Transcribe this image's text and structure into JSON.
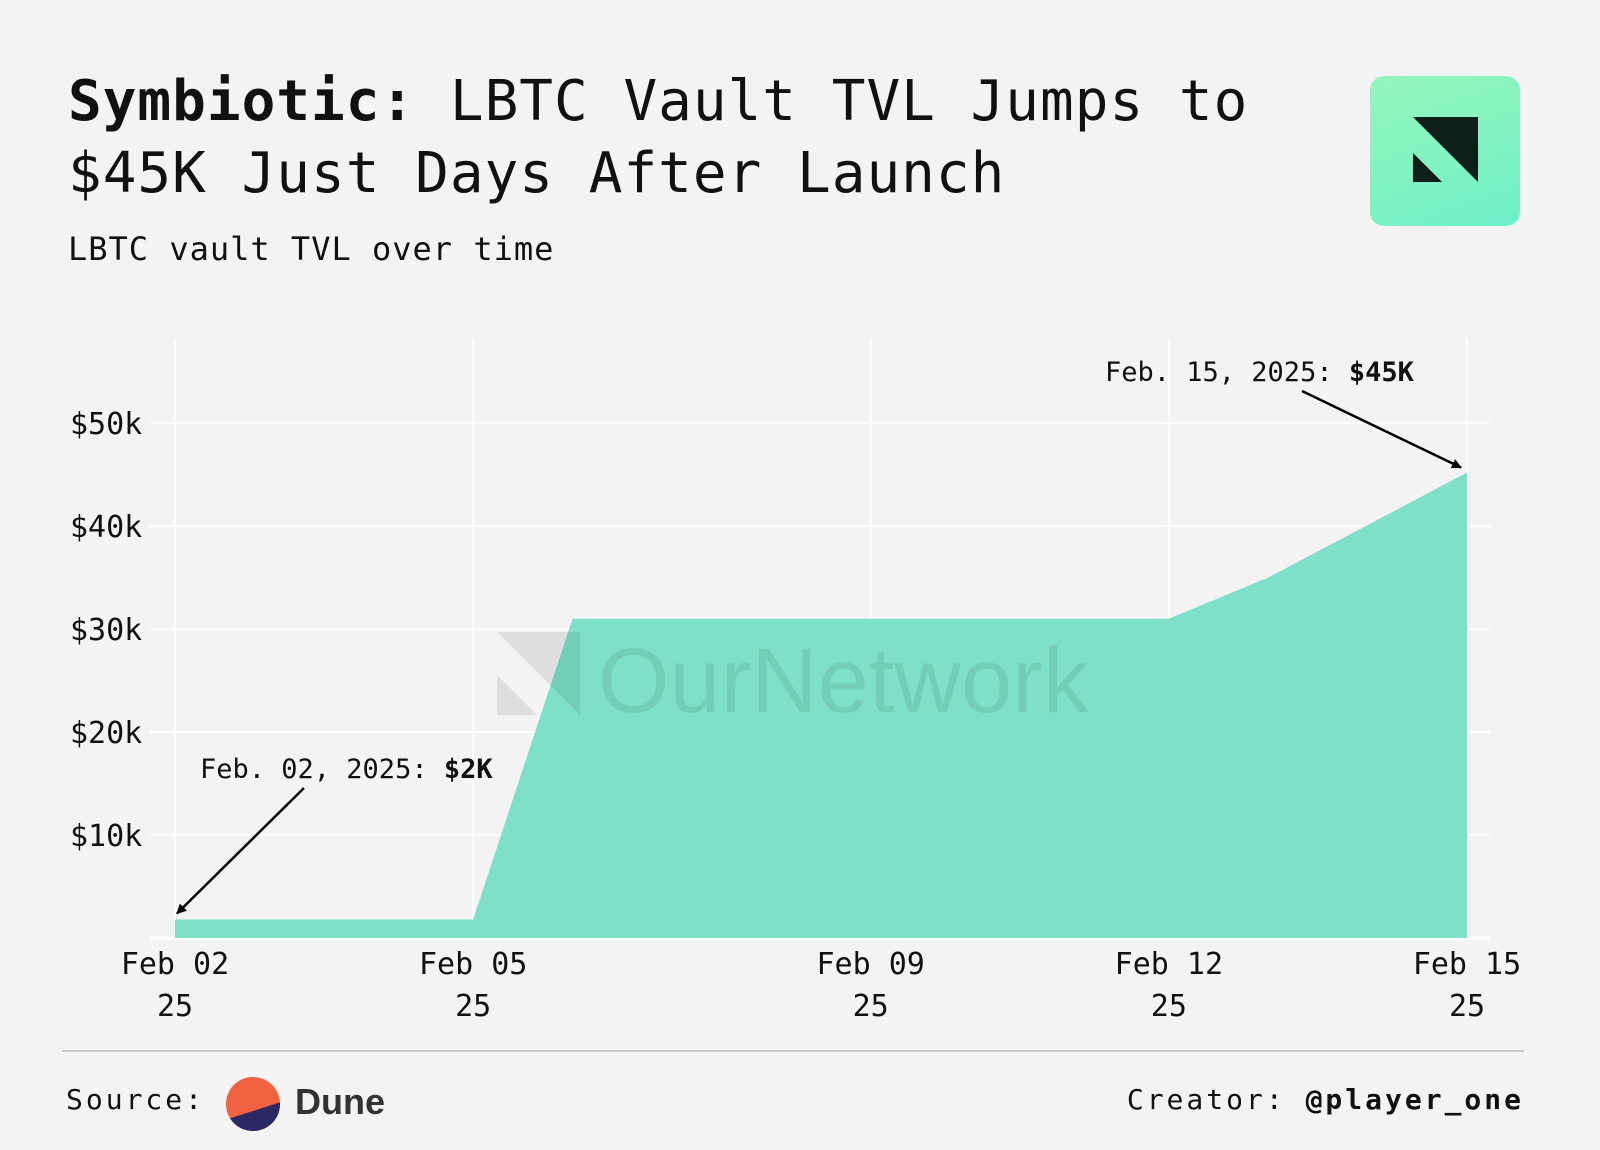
{
  "header": {
    "title_bold": "Symbiotic:",
    "title_rest": " LBTC Vault TVL Jumps to $45K Just Days After Launch",
    "subtitle": "LBTC vault TVL over time"
  },
  "watermark": "OurNetwork",
  "footer": {
    "source_label": "Source:",
    "source_name": "Dune",
    "creator_label": "Creator:",
    "creator_handle": "@player_one"
  },
  "colors": {
    "area": "#7be0c6",
    "grid": "#ffffff",
    "dune_orange": "#f06240",
    "dune_navy": "#2c2864"
  },
  "chart_data": {
    "type": "area",
    "title": "",
    "xlabel": "",
    "ylabel": "",
    "x": [
      "2025-02-02",
      "2025-02-05",
      "2025-02-06",
      "2025-02-12",
      "2025-02-13",
      "2025-02-15"
    ],
    "values": [
      1800,
      1800,
      31000,
      31000,
      35000,
      45200
    ],
    "ylim": [
      0,
      57000
    ],
    "yticks": [
      10000,
      20000,
      30000,
      40000,
      50000
    ],
    "ytick_labels": [
      "$10k",
      "$20k",
      "$30k",
      "$40k",
      "$50k"
    ],
    "xticks": [
      "2025-02-02",
      "2025-02-05",
      "2025-02-09",
      "2025-02-12",
      "2025-02-15"
    ],
    "xtick_labels": [
      [
        "Feb 02",
        "25"
      ],
      [
        "Feb 05",
        "25"
      ],
      [
        "Feb 09",
        "25"
      ],
      [
        "Feb 12",
        "25"
      ],
      [
        "Feb 15",
        "25"
      ]
    ],
    "grid": true,
    "annotations": [
      {
        "x": "2025-02-02",
        "y": 1800,
        "text": "Feb. 02, 2025: ",
        "bold": "$2K"
      },
      {
        "x": "2025-02-15",
        "y": 45200,
        "text": "Feb. 15, 2025: ",
        "bold": "$45K"
      }
    ]
  }
}
